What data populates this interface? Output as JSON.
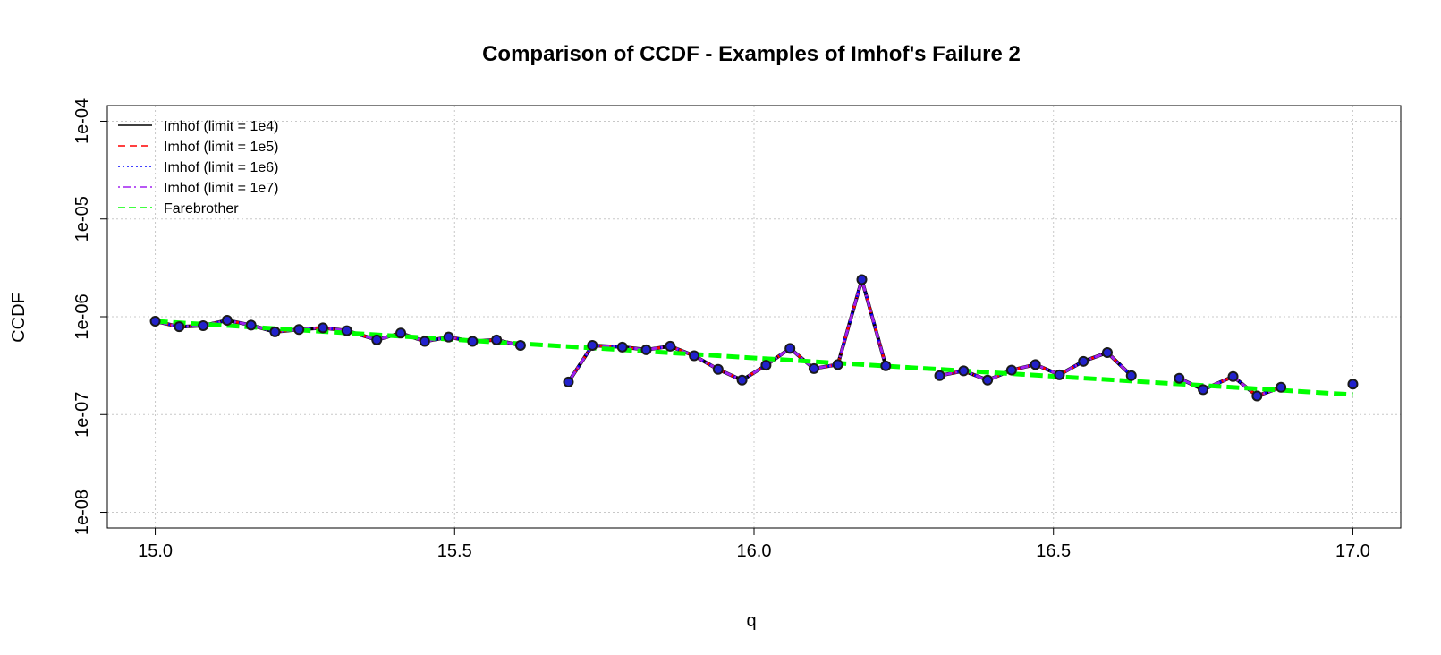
{
  "chart_data": {
    "type": "line",
    "title": "Comparison of CCDF  - Examples of Imhof's Failure 2",
    "xlabel": "q",
    "ylabel": "CCDF",
    "xlim": [
      15.0,
      17.0
    ],
    "ylim": [
      1e-08,
      0.0001
    ],
    "y_scale": "log",
    "x_ticks": [
      15.0,
      15.5,
      16.0,
      16.5,
      17.0
    ],
    "x_tick_labels": [
      "15.0",
      "15.5",
      "16.0",
      "16.5",
      "17.0"
    ],
    "y_ticks": [
      1e-08,
      1e-07,
      1e-06,
      1e-05,
      0.0001
    ],
    "y_tick_labels": [
      "1e-08",
      "1e-07",
      "1e-06",
      "1e-05",
      "1e-04"
    ],
    "grid": true,
    "legend_position": "top-left",
    "series": [
      {
        "name": "Imhof (limit = 1e4)",
        "color": "#000000",
        "style": "solid",
        "x": [
          15.0,
          15.04,
          15.08,
          15.12,
          15.16,
          15.2,
          15.24,
          15.28,
          15.32,
          15.37,
          15.41,
          15.45,
          15.49,
          15.53,
          15.57,
          15.61,
          null,
          15.69,
          15.73,
          15.78,
          15.82,
          15.86,
          15.9,
          15.94,
          15.98,
          16.02,
          16.06,
          16.1,
          16.14,
          16.18,
          16.22,
          null,
          16.31,
          16.35,
          16.39,
          16.43,
          16.47,
          16.51,
          16.55,
          16.59,
          16.63,
          null,
          16.71,
          16.75,
          16.8,
          16.84,
          16.88,
          null,
          17.0
        ],
        "y": [
          9e-07,
          7.9e-07,
          8.1e-07,
          9.2e-07,
          8.2e-07,
          7e-07,
          7.4e-07,
          7.7e-07,
          7.2e-07,
          5.8e-07,
          6.8e-07,
          5.6e-07,
          6.2e-07,
          5.6e-07,
          5.8e-07,
          5.1e-07,
          null,
          2.15e-07,
          5.1e-07,
          4.9e-07,
          4.6e-07,
          5e-07,
          4e-07,
          2.9e-07,
          2.25e-07,
          3.2e-07,
          4.75e-07,
          2.95e-07,
          3.25e-07,
          2.4e-06,
          3.15e-07,
          null,
          2.5e-07,
          2.8e-07,
          2.25e-07,
          2.85e-07,
          3.25e-07,
          2.55e-07,
          3.5e-07,
          4.3e-07,
          2.5e-07,
          null,
          2.35e-07,
          1.8e-07,
          2.45e-07,
          1.55e-07,
          1.9e-07,
          null,
          2.05e-07
        ]
      },
      {
        "name": "Imhof (limit = 1e5)",
        "color": "#ff0000",
        "style": "dashed",
        "x": [
          15.0,
          15.04,
          15.08,
          15.12,
          15.16,
          15.2,
          15.24,
          15.28,
          15.32,
          15.37,
          15.41,
          15.45,
          15.49,
          15.53,
          15.57,
          15.61,
          null,
          15.69,
          15.73,
          15.78,
          15.82,
          15.86,
          15.9,
          15.94,
          15.98,
          16.02,
          16.06,
          16.1,
          16.14,
          16.18,
          16.22,
          null,
          16.31,
          16.35,
          16.39,
          16.43,
          16.47,
          16.51,
          16.55,
          16.59,
          16.63,
          null,
          16.71,
          16.75,
          16.8,
          16.84,
          16.88,
          null,
          17.0
        ],
        "y": [
          9e-07,
          7.9e-07,
          8.1e-07,
          9.2e-07,
          8.2e-07,
          7e-07,
          7.4e-07,
          7.7e-07,
          7.2e-07,
          5.8e-07,
          6.8e-07,
          5.6e-07,
          6.2e-07,
          5.6e-07,
          5.8e-07,
          5.1e-07,
          null,
          2.15e-07,
          5.1e-07,
          4.9e-07,
          4.6e-07,
          5e-07,
          4e-07,
          2.9e-07,
          2.25e-07,
          3.2e-07,
          4.75e-07,
          2.95e-07,
          3.25e-07,
          2.4e-06,
          3.15e-07,
          null,
          2.5e-07,
          2.8e-07,
          2.25e-07,
          2.85e-07,
          3.25e-07,
          2.55e-07,
          3.5e-07,
          4.3e-07,
          2.5e-07,
          null,
          2.35e-07,
          1.8e-07,
          2.45e-07,
          1.55e-07,
          1.9e-07,
          null,
          2.05e-07
        ]
      },
      {
        "name": "Imhof (limit = 1e6)",
        "color": "#0000ff",
        "style": "dotted",
        "x": [
          15.0,
          15.04,
          15.08,
          15.12,
          15.16,
          15.2,
          15.24,
          15.28,
          15.32,
          15.37,
          15.41,
          15.45,
          15.49,
          15.53,
          15.57,
          15.61,
          null,
          15.69,
          15.73,
          15.78,
          15.82,
          15.86,
          15.9,
          15.94,
          15.98,
          16.02,
          16.06,
          16.1,
          16.14,
          16.18,
          16.22,
          null,
          16.31,
          16.35,
          16.39,
          16.43,
          16.47,
          16.51,
          16.55,
          16.59,
          16.63,
          null,
          16.71,
          16.75,
          16.8,
          16.84,
          16.88,
          null,
          17.0
        ],
        "y": [
          9e-07,
          7.9e-07,
          8.1e-07,
          9.2e-07,
          8.2e-07,
          7e-07,
          7.4e-07,
          7.7e-07,
          7.2e-07,
          5.8e-07,
          6.8e-07,
          5.6e-07,
          6.2e-07,
          5.6e-07,
          5.8e-07,
          5.1e-07,
          null,
          2.15e-07,
          5.1e-07,
          4.9e-07,
          4.6e-07,
          5e-07,
          4e-07,
          2.9e-07,
          2.25e-07,
          3.2e-07,
          4.75e-07,
          2.95e-07,
          3.25e-07,
          2.4e-06,
          3.15e-07,
          null,
          2.5e-07,
          2.8e-07,
          2.25e-07,
          2.85e-07,
          3.25e-07,
          2.55e-07,
          3.5e-07,
          4.3e-07,
          2.5e-07,
          null,
          2.35e-07,
          1.8e-07,
          2.45e-07,
          1.55e-07,
          1.9e-07,
          null,
          2.05e-07
        ]
      },
      {
        "name": "Imhof (limit = 1e7)",
        "color": "#a020f0",
        "style": "dotdash",
        "x": [
          15.0,
          15.04,
          15.08,
          15.12,
          15.16,
          15.2,
          15.24,
          15.28,
          15.32,
          15.37,
          15.41,
          15.45,
          15.49,
          15.53,
          15.57,
          15.61,
          null,
          15.69,
          15.73,
          15.78,
          15.82,
          15.86,
          15.9,
          15.94,
          15.98,
          16.02,
          16.06,
          16.1,
          16.14,
          16.18,
          16.22,
          null,
          16.31,
          16.35,
          16.39,
          16.43,
          16.47,
          16.51,
          16.55,
          16.59,
          16.63,
          null,
          16.71,
          16.75,
          16.8,
          16.84,
          16.88,
          null,
          17.0
        ],
        "y": [
          9e-07,
          7.9e-07,
          8.1e-07,
          9.2e-07,
          8.2e-07,
          7e-07,
          7.4e-07,
          7.7e-07,
          7.2e-07,
          5.8e-07,
          6.8e-07,
          5.6e-07,
          6.2e-07,
          5.6e-07,
          5.8e-07,
          5.1e-07,
          null,
          2.15e-07,
          5.1e-07,
          4.9e-07,
          4.6e-07,
          5e-07,
          4e-07,
          2.9e-07,
          2.25e-07,
          3.2e-07,
          4.75e-07,
          2.95e-07,
          3.25e-07,
          2.4e-06,
          3.15e-07,
          null,
          2.5e-07,
          2.8e-07,
          2.25e-07,
          2.85e-07,
          3.25e-07,
          2.55e-07,
          3.5e-07,
          4.3e-07,
          2.5e-07,
          null,
          2.35e-07,
          1.8e-07,
          2.45e-07,
          1.55e-07,
          1.9e-07,
          null,
          2.05e-07
        ]
      },
      {
        "name": "Farebrother",
        "color": "#00ff00",
        "style": "longdash",
        "x": [
          15.0,
          17.0
        ],
        "y": [
          9e-07,
          1.6e-07
        ]
      }
    ]
  }
}
